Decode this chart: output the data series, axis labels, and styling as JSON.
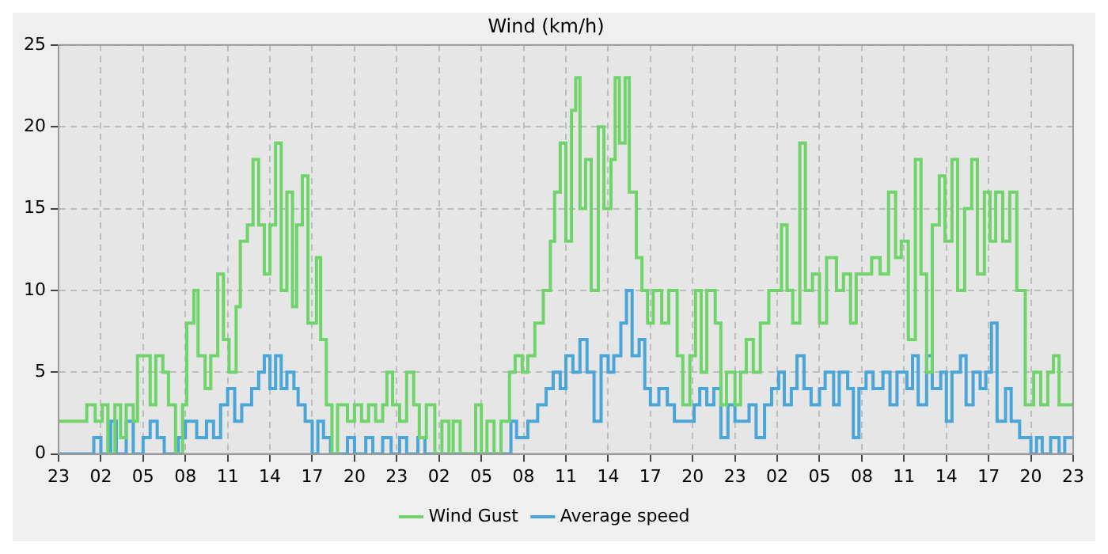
{
  "chart_data": {
    "type": "step",
    "title": "Wind (km/h)",
    "legend": "bottom",
    "grid": true,
    "xlim": [
      "--01-01T23:00",
      "--01-04T23:00"
    ],
    "xticks": [
      {
        "value": "--01-01T23:00",
        "label": "23"
      },
      {
        "value": "--01-02T02:00",
        "label": "02"
      },
      {
        "value": "--01-02T05:00",
        "label": "05"
      },
      {
        "value": "--01-02T08:00",
        "label": "08"
      },
      {
        "value": "--01-02T11:00",
        "label": "11"
      },
      {
        "value": "--01-02T14:00",
        "label": "14"
      },
      {
        "value": "--01-02T17:00",
        "label": "17"
      },
      {
        "value": "--01-02T20:00",
        "label": "20"
      },
      {
        "value": "--01-02T23:00",
        "label": "23"
      },
      {
        "value": "--01-03T02:00",
        "label": "02"
      },
      {
        "value": "--01-03T05:00",
        "label": "05"
      },
      {
        "value": "--01-03T08:00",
        "label": "08"
      },
      {
        "value": "--01-03T11:00",
        "label": "11"
      },
      {
        "value": "--01-03T14:00",
        "label": "14"
      },
      {
        "value": "--01-03T17:00",
        "label": "17"
      },
      {
        "value": "--01-03T20:00",
        "label": "20"
      },
      {
        "value": "--01-03T23:00",
        "label": "23"
      },
      {
        "value": "--01-04T02:00",
        "label": "02"
      },
      {
        "value": "--01-04T05:00",
        "label": "05"
      },
      {
        "value": "--01-04T08:00",
        "label": "08"
      },
      {
        "value": "--01-04T11:00",
        "label": "11"
      },
      {
        "value": "--01-04T14:00",
        "label": "14"
      },
      {
        "value": "--01-04T17:00",
        "label": "17"
      },
      {
        "value": "--01-04T20:00",
        "label": "20"
      },
      {
        "value": "--01-04T23:00",
        "label": "23"
      }
    ],
    "ylim": [
      0,
      25
    ],
    "yticks": [
      0,
      5,
      10,
      15,
      20,
      25
    ],
    "series": [
      {
        "name": "Wind Gust",
        "color": "#6fd46a",
        "x": [
          "--01-01T23:00",
          "--01-02T01:00",
          "--01-02T01:36",
          "--01-02T02:06",
          "--01-02T02:30",
          "--01-02T03:00",
          "--01-02T03:24",
          "--01-02T03:48",
          "--01-02T04:18",
          "--01-02T04:36",
          "--01-02T05:30",
          "--01-02T05:54",
          "--01-02T06:24",
          "--01-02T06:48",
          "--01-02T07:18",
          "--01-02T07:48",
          "--01-02T08:06",
          "--01-02T08:36",
          "--01-02T08:54",
          "--01-02T09:24",
          "--01-02T09:48",
          "--01-02T10:18",
          "--01-02T10:42",
          "--01-02T11:06",
          "--01-02T11:36",
          "--01-02T11:54",
          "--01-02T12:24",
          "--01-02T12:48",
          "--01-02T13:12",
          "--01-02T13:36",
          "--01-02T14:00",
          "--01-02T14:24",
          "--01-02T14:48",
          "--01-02T15:12",
          "--01-02T15:36",
          "--01-02T15:54",
          "--01-02T16:18",
          "--01-02T16:42",
          "--01-02T17:18",
          "--01-02T17:36",
          "--01-02T18:00",
          "--01-02T18:24",
          "--01-02T18:48",
          "--01-02T19:30",
          "--01-02T20:00",
          "--01-02T20:30",
          "--01-02T21:00",
          "--01-02T21:30",
          "--01-02T22:00",
          "--01-02T22:18",
          "--01-02T22:42",
          "--01-02T23:12",
          "--01-02T23:42",
          "--01-03T00:12",
          "--01-03T00:36",
          "--01-03T01:06",
          "--01-03T01:42",
          "--01-03T02:12",
          "--01-03T02:42",
          "--01-03T03:00",
          "--01-03T03:30",
          "--01-03T04:36",
          "--01-03T05:00",
          "--01-03T05:24",
          "--01-03T05:54",
          "--01-03T06:24",
          "--01-03T07:00",
          "--01-03T07:24",
          "--01-03T07:54",
          "--01-03T08:18",
          "--01-03T08:48",
          "--01-03T09:24",
          "--01-03T09:54",
          "--01-03T10:12",
          "--01-03T10:36",
          "--01-03T11:00",
          "--01-03T11:24",
          "--01-03T11:42",
          "--01-03T12:00",
          "--01-03T12:24",
          "--01-03T12:48",
          "--01-03T13:18",
          "--01-03T13:42",
          "--01-03T14:12",
          "--01-03T14:30",
          "--01-03T14:48",
          "--01-03T15:12",
          "--01-03T15:30",
          "--01-03T16:00",
          "--01-03T16:24",
          "--01-03T16:48",
          "--01-03T17:12",
          "--01-03T17:48",
          "--01-03T18:18",
          "--01-03T18:54",
          "--01-03T19:18",
          "--01-03T19:48",
          "--01-03T20:12",
          "--01-03T20:36",
          "--01-03T21:00",
          "--01-03T21:36",
          "--01-03T22:00",
          "--01-03T22:24",
          "--01-03T23:00",
          "--01-03T23:24",
          "--01-03T23:48",
          "--01-04T00:18",
          "--01-04T00:48",
          "--01-04T01:24",
          "--01-04T02:18",
          "--01-04T02:42",
          "--01-04T03:06",
          "--01-04T03:36",
          "--01-04T04:00",
          "--01-04T04:30",
          "--01-04T05:00",
          "--01-04T05:30",
          "--01-04T06:12",
          "--01-04T06:42",
          "--01-04T07:12",
          "--01-04T07:36",
          "--01-04T08:06",
          "--01-04T08:42",
          "--01-04T09:18",
          "--01-04T09:54",
          "--01-04T10:24",
          "--01-04T10:48",
          "--01-04T11:18",
          "--01-04T11:48",
          "--01-04T12:12",
          "--01-04T12:36",
          "--01-04T13:00",
          "--01-04T13:30",
          "--01-04T13:54",
          "--01-04T14:24",
          "--01-04T14:48",
          "--01-04T15:18",
          "--01-04T15:48",
          "--01-04T16:12",
          "--01-04T16:42",
          "--01-04T17:06",
          "--01-04T17:30",
          "--01-04T18:00",
          "--01-04T18:30",
          "--01-04T19:00",
          "--01-04T19:36",
          "--01-04T20:12",
          "--01-04T20:42",
          "--01-04T21:12",
          "--01-04T21:36",
          "--01-04T22:00",
          "--01-04T23:00"
        ],
        "values": [
          2,
          3,
          2,
          3,
          0,
          3,
          1,
          3,
          2,
          6,
          3,
          6,
          5,
          3,
          0,
          3,
          8,
          10,
          6,
          4,
          6,
          11,
          7,
          5,
          9,
          13,
          14,
          18,
          14,
          11,
          14,
          19,
          10,
          16,
          9,
          14,
          17,
          8,
          12,
          7,
          3,
          0,
          3,
          2,
          3,
          2,
          3,
          2,
          3,
          5,
          3,
          2,
          5,
          3,
          1,
          3,
          0,
          2,
          0,
          2,
          0,
          3,
          0,
          2,
          0,
          2,
          5,
          6,
          5,
          6,
          8,
          10,
          13,
          16,
          19,
          13,
          21,
          23,
          15,
          18,
          10,
          20,
          15,
          18,
          23,
          19,
          23,
          16,
          12,
          10,
          8,
          10,
          8,
          10,
          6,
          3,
          6,
          10,
          5,
          10,
          8,
          3,
          5,
          3,
          5,
          7,
          5,
          8,
          10,
          14,
          10,
          8,
          19,
          10,
          11,
          8,
          12,
          10,
          11,
          8,
          11,
          11,
          12,
          11,
          16,
          12,
          13,
          7,
          18,
          11,
          5,
          14,
          17,
          13,
          18,
          10,
          15,
          18,
          11,
          16,
          13,
          16,
          13,
          16,
          10,
          3,
          5,
          3,
          5,
          6,
          3,
          3
        ]
      },
      {
        "name": "Average speed",
        "color": "#4aa5d8",
        "x": [
          "--01-01T23:00",
          "--01-02T01:30",
          "--01-02T02:00",
          "--01-02T02:42",
          "--01-02T03:06",
          "--01-02T03:48",
          "--01-02T04:18",
          "--01-02T05:00",
          "--01-02T05:30",
          "--01-02T06:00",
          "--01-02T06:30",
          "--01-02T07:30",
          "--01-02T08:00",
          "--01-02T08:48",
          "--01-02T09:30",
          "--01-02T10:00",
          "--01-02T10:30",
          "--01-02T11:00",
          "--01-02T11:30",
          "--01-02T12:00",
          "--01-02T12:42",
          "--01-02T13:12",
          "--01-02T13:36",
          "--01-02T14:00",
          "--01-02T14:24",
          "--01-02T14:48",
          "--01-02T15:12",
          "--01-02T15:42",
          "--01-02T16:00",
          "--01-02T16:30",
          "--01-02T17:00",
          "--01-02T17:24",
          "--01-02T17:48",
          "--01-02T18:18",
          "--01-02T19:00",
          "--01-02T19:30",
          "--01-02T20:00",
          "--01-02T20:48",
          "--01-02T21:18",
          "--01-02T22:00",
          "--01-02T22:36",
          "--01-02T23:12",
          "--01-02T23:42",
          "--01-03T00:30",
          "--01-03T01:00",
          "--01-03T07:06",
          "--01-03T07:30",
          "--01-03T08:18",
          "--01-03T09:00",
          "--01-03T09:36",
          "--01-03T10:06",
          "--01-03T10:36",
          "--01-03T11:00",
          "--01-03T11:30",
          "--01-03T12:00",
          "--01-03T12:30",
          "--01-03T13:00",
          "--01-03T13:30",
          "--01-03T14:00",
          "--01-03T14:24",
          "--01-03T14:54",
          "--01-03T15:18",
          "--01-03T15:42",
          "--01-03T16:12",
          "--01-03T16:36",
          "--01-03T17:00",
          "--01-03T17:36",
          "--01-03T18:12",
          "--01-03T18:42",
          "--01-03T20:06",
          "--01-03T20:30",
          "--01-03T21:00",
          "--01-03T21:30",
          "--01-03T22:00",
          "--01-03T22:30",
          "--01-03T23:00",
          "--01-04T00:00",
          "--01-04T00:30",
          "--01-04T01:06",
          "--01-04T01:36",
          "--01-04T02:06",
          "--01-04T02:30",
          "--01-04T03:00",
          "--01-04T03:24",
          "--01-04T03:54",
          "--01-04T04:24",
          "--01-04T05:00",
          "--01-04T05:24",
          "--01-04T06:00",
          "--01-04T06:24",
          "--01-04T07:00",
          "--01-04T07:24",
          "--01-04T07:48",
          "--01-04T08:18",
          "--01-04T08:48",
          "--01-04T09:30",
          "--01-04T10:00",
          "--01-04T10:30",
          "--01-04T11:12",
          "--01-04T11:36",
          "--01-04T12:00",
          "--01-04T12:36",
          "--01-04T13:00",
          "--01-04T13:36",
          "--01-04T14:00",
          "--01-04T14:24",
          "--01-04T15:00",
          "--01-04T15:24",
          "--01-04T15:54",
          "--01-04T16:24",
          "--01-04T16:48",
          "--01-04T17:12",
          "--01-04T17:36",
          "--01-04T18:12",
          "--01-04T18:36",
          "--01-04T19:12",
          "--01-04T20:00",
          "--01-04T20:24",
          "--01-04T20:48",
          "--01-04T21:24",
          "--01-04T22:00",
          "--01-04T22:24",
          "--01-04T23:00"
        ],
        "values": [
          0,
          1,
          0,
          2,
          0,
          2,
          0,
          1,
          2,
          1,
          0,
          1,
          2,
          1,
          2,
          1,
          3,
          4,
          2,
          3,
          4,
          5,
          6,
          4,
          6,
          4,
          5,
          4,
          3,
          2,
          0,
          2,
          1,
          0,
          0,
          1,
          0,
          1,
          0,
          1,
          0,
          1,
          0,
          1,
          0,
          2,
          1,
          2,
          3,
          4,
          5,
          4,
          6,
          5,
          7,
          5,
          2,
          6,
          5,
          6,
          8,
          10,
          6,
          7,
          4,
          3,
          4,
          3,
          2,
          3,
          4,
          3,
          4,
          1,
          3,
          2,
          3,
          1,
          3,
          4,
          5,
          3,
          4,
          6,
          4,
          3,
          4,
          5,
          3,
          5,
          4,
          1,
          4,
          5,
          4,
          5,
          3,
          5,
          4,
          6,
          3,
          6,
          4,
          5,
          2,
          5,
          6,
          3,
          5,
          4,
          5,
          8,
          2,
          4,
          2,
          1,
          0,
          1,
          0,
          1,
          0,
          1,
          1
        ]
      }
    ]
  }
}
